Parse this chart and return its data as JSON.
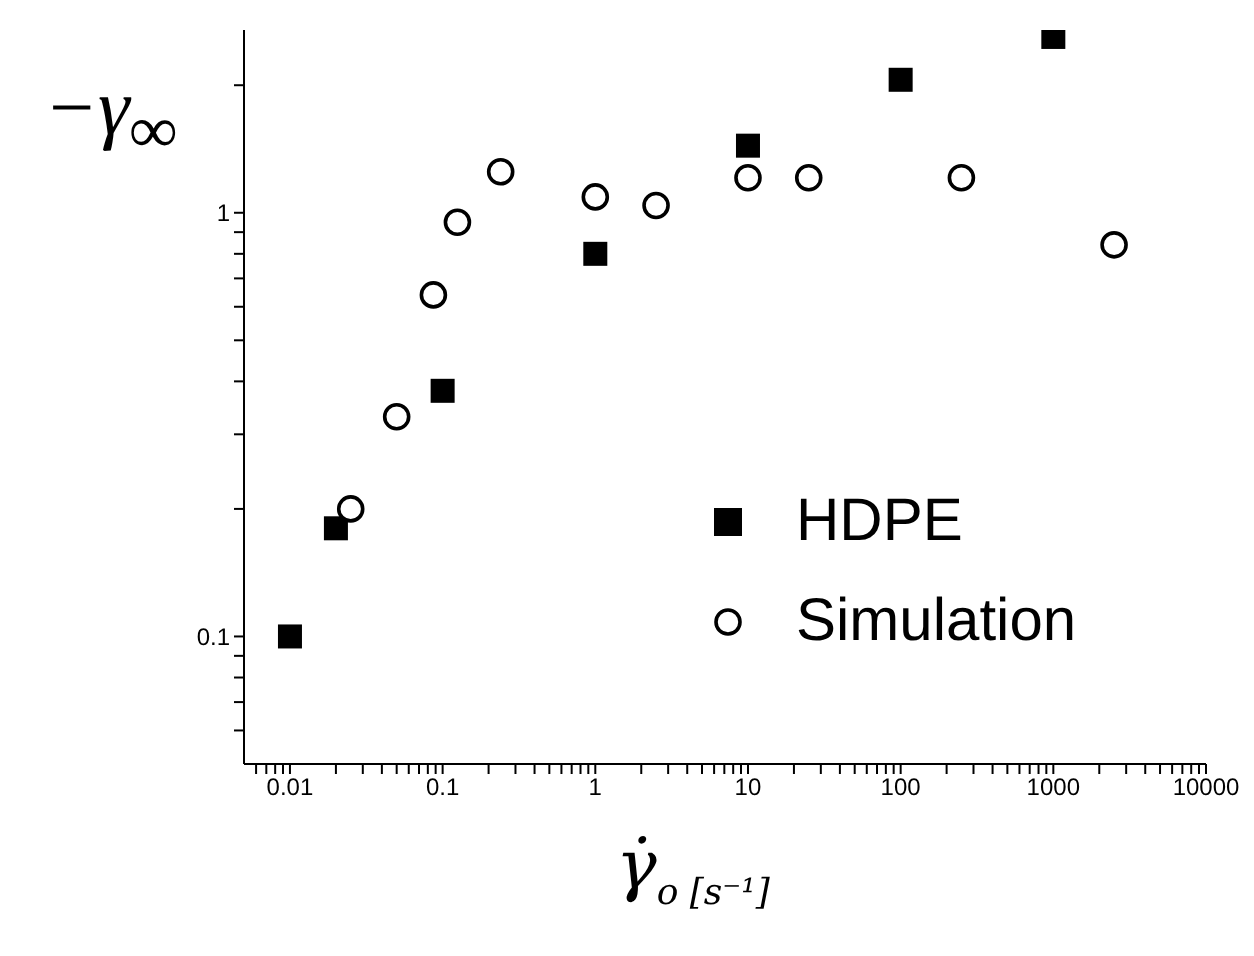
{
  "chart_data": {
    "type": "scatter",
    "xlabel": "γ̇$_{o [s⁻¹]}$",
    "ylabel": "−γ$_{∞}$",
    "log": "xy",
    "legend": "right",
    "grid": false,
    "xlim": [
      0.005,
      10000
    ],
    "xticks": [
      0.01,
      0.1,
      1,
      10,
      100,
      1000,
      10000,
      {
        "value": 0.006,
        "label": null
      },
      {
        "value": 0.007,
        "label": null
      },
      {
        "value": 0.008,
        "label": null
      },
      {
        "value": 0.009,
        "label": null
      },
      {
        "value": 0.02,
        "label": null
      },
      {
        "value": 0.03,
        "label": null
      },
      {
        "value": 0.04,
        "label": null
      },
      {
        "value": 0.05,
        "label": null
      },
      {
        "value": 0.06,
        "label": null
      },
      {
        "value": 0.07,
        "label": null
      },
      {
        "value": 0.08,
        "label": null
      },
      {
        "value": 0.09,
        "label": null
      },
      {
        "value": 0.2,
        "label": null
      },
      {
        "value": 0.3,
        "label": null
      },
      {
        "value": 0.4,
        "label": null
      },
      {
        "value": 0.5,
        "label": null
      },
      {
        "value": 0.6,
        "label": null
      },
      {
        "value": 0.7,
        "label": null
      },
      {
        "value": 0.8,
        "label": null
      },
      {
        "value": 0.9,
        "label": null
      },
      {
        "value": 2,
        "label": null
      },
      {
        "value": 3,
        "label": null
      },
      {
        "value": 4,
        "label": null
      },
      {
        "value": 5,
        "label": null
      },
      {
        "value": 6,
        "label": null
      },
      {
        "value": 7,
        "label": null
      },
      {
        "value": 8,
        "label": null
      },
      {
        "value": 9,
        "label": null
      },
      {
        "value": 20,
        "label": null
      },
      {
        "value": 30,
        "label": null
      },
      {
        "value": 40,
        "label": null
      },
      {
        "value": 50,
        "label": null
      },
      {
        "value": 60,
        "label": null
      },
      {
        "value": 70,
        "label": null
      },
      {
        "value": 80,
        "label": null
      },
      {
        "value": 90,
        "label": null
      },
      {
        "value": 200,
        "label": null
      },
      {
        "value": 300,
        "label": null
      },
      {
        "value": 400,
        "label": null
      },
      {
        "value": 500,
        "label": null
      },
      {
        "value": 600,
        "label": null
      },
      {
        "value": 700,
        "label": null
      },
      {
        "value": 800,
        "label": null
      },
      {
        "value": 900,
        "label": null
      },
      {
        "value": 2000,
        "label": null
      },
      {
        "value": 3000,
        "label": null
      },
      {
        "value": 4000,
        "label": null
      },
      {
        "value": 5000,
        "label": null
      },
      {
        "value": 6000,
        "label": null
      },
      {
        "value": 7000,
        "label": null
      },
      {
        "value": 8000,
        "label": null
      },
      {
        "value": 9000,
        "label": null
      }
    ],
    "ylim": [
      0.05,
      2.7
    ],
    "yticks": [
      0.1,
      1,
      {
        "value": 0.06,
        "label": null
      },
      {
        "value": 0.07,
        "label": null
      },
      {
        "value": 0.08,
        "label": null
      },
      {
        "value": 0.09,
        "label": null
      },
      {
        "value": 0.2,
        "label": null
      },
      {
        "value": 0.3,
        "label": null
      },
      {
        "value": 0.4,
        "label": null
      },
      {
        "value": 0.5,
        "label": null
      },
      {
        "value": 0.6,
        "label": null
      },
      {
        "value": 0.7,
        "label": null
      },
      {
        "value": 0.8,
        "label": null
      },
      {
        "value": 0.9,
        "label": null
      },
      {
        "value": 2,
        "label": null
      }
    ],
    "series": [
      {
        "name": "HDPE",
        "color": "#000000",
        "marker": "square",
        "x": [
          0.01,
          0.02,
          0.1,
          1,
          10,
          100,
          1000
        ],
        "values": [
          0.1,
          0.18,
          0.38,
          0.8,
          1.44,
          2.06,
          2.6
        ]
      },
      {
        "name": "Simulation",
        "color": "#000000",
        "marker": "circle",
        "x": [
          0.025,
          0.05,
          0.087,
          0.125,
          0.24,
          1,
          2.5,
          10,
          25,
          250,
          2500
        ],
        "values": [
          0.2,
          0.33,
          0.64,
          0.95,
          1.25,
          1.09,
          1.04,
          1.21,
          1.21,
          1.21,
          0.84
        ]
      }
    ]
  }
}
